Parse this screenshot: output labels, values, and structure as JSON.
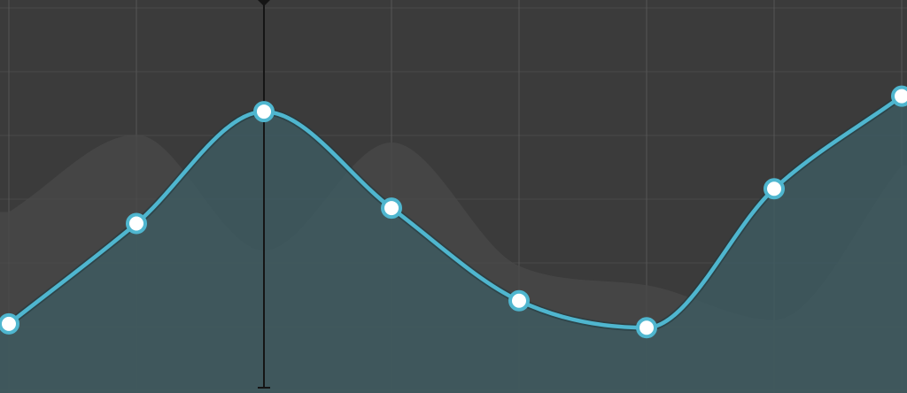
{
  "chart_data": {
    "type": "area",
    "title": "",
    "xlabel": "",
    "ylabel": "",
    "x": [
      0,
      1,
      2,
      3,
      4,
      5,
      6,
      7
    ],
    "ylim": [
      0,
      100
    ],
    "grid": true,
    "cursor_x": 2,
    "series": [
      {
        "values": [
          17,
          43,
          72,
          47,
          23,
          16,
          52,
          76
        ],
        "color": "#4fb6cf",
        "emphasis": "primary"
      },
      {
        "values": [
          46,
          66,
          36,
          64,
          32,
          27,
          18,
          58
        ],
        "color": "#4a4a4a",
        "emphasis": "background"
      }
    ],
    "colors": {
      "background": "#3b3b3b",
      "grid": "#565656",
      "fill": "#3e5a60",
      "line": "#4fb6cf",
      "point_fill": "#ffffff",
      "cursor": "#151515"
    }
  }
}
